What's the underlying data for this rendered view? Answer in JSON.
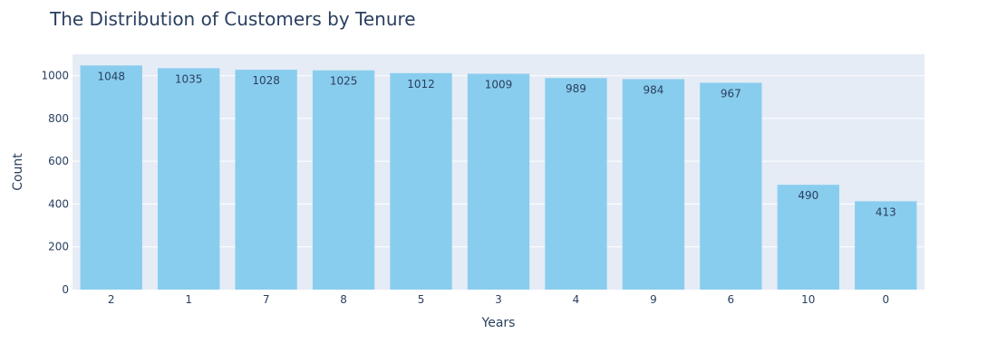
{
  "chart_data": {
    "type": "bar",
    "title": "The Distribution of Customers by Tenure",
    "xlabel": "Years",
    "ylabel": "Count",
    "categories": [
      "2",
      "1",
      "7",
      "8",
      "5",
      "3",
      "4",
      "9",
      "6",
      "10",
      "0"
    ],
    "values": [
      1048,
      1035,
      1028,
      1025,
      1012,
      1009,
      989,
      984,
      967,
      490,
      413
    ],
    "ylim": [
      0,
      1100
    ],
    "yticks": [
      0,
      200,
      400,
      600,
      800,
      1000
    ],
    "grid": true,
    "bar_color": "#89cdee",
    "plot_background": "#e5ecf6"
  }
}
